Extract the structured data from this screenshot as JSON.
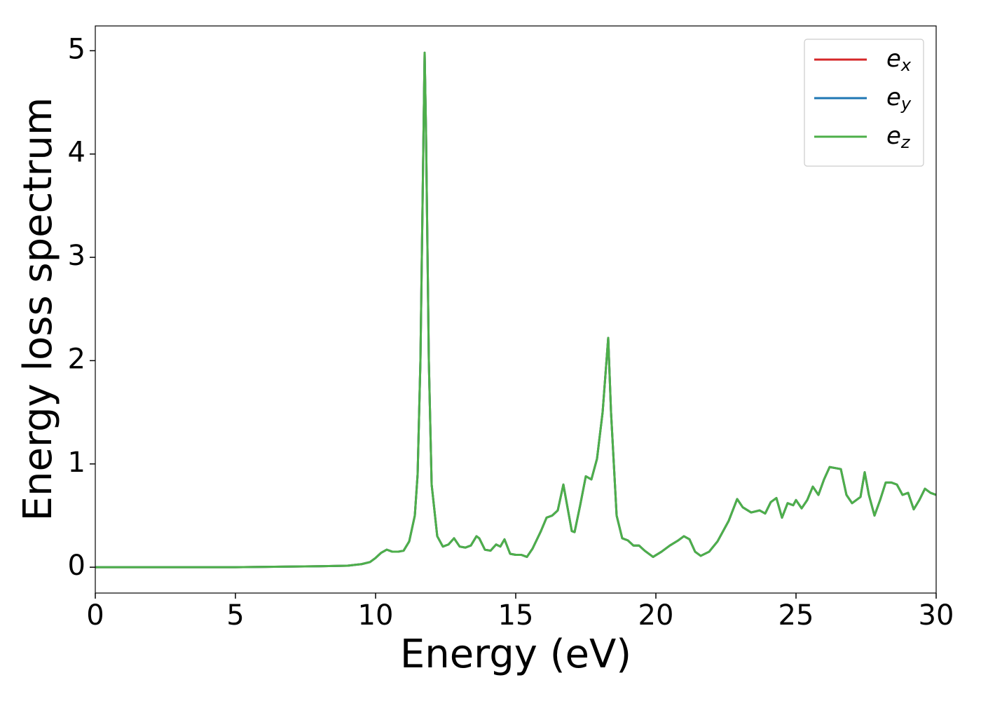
{
  "chart_data": {
    "type": "line",
    "xlabel": "Energy (eV)",
    "ylabel": "Energy loss spectrum",
    "x": [
      0,
      5,
      8,
      9,
      9.5,
      9.8,
      10.0,
      10.2,
      10.4,
      10.6,
      10.8,
      11.0,
      11.2,
      11.4,
      11.5,
      11.6,
      11.7,
      11.75,
      11.8,
      11.9,
      12.0,
      12.2,
      12.4,
      12.6,
      12.8,
      13.0,
      13.2,
      13.4,
      13.6,
      13.7,
      13.9,
      14.1,
      14.3,
      14.45,
      14.6,
      14.8,
      15.0,
      15.2,
      15.4,
      15.6,
      15.9,
      16.1,
      16.3,
      16.5,
      16.7,
      16.8,
      17.0,
      17.1,
      17.3,
      17.5,
      17.7,
      17.9,
      18.1,
      18.3,
      18.4,
      18.6,
      18.8,
      19.0,
      19.2,
      19.4,
      19.6,
      19.9,
      20.2,
      20.5,
      20.8,
      21.0,
      21.2,
      21.4,
      21.6,
      21.9,
      22.2,
      22.6,
      22.9,
      23.1,
      23.4,
      23.7,
      23.9,
      24.1,
      24.3,
      24.5,
      24.7,
      24.9,
      25.0,
      25.2,
      25.4,
      25.6,
      25.8,
      26.0,
      26.2,
      26.4,
      26.6,
      26.8,
      27.0,
      27.3,
      27.45,
      27.6,
      27.8,
      28.0,
      28.2,
      28.4,
      28.6,
      28.8,
      29.0,
      29.2,
      29.4,
      29.6,
      29.8,
      30.0
    ],
    "series": [
      {
        "name": "e",
        "subscript": "x",
        "color": "#d62728",
        "values": [
          0,
          0,
          0.01,
          0.015,
          0.03,
          0.05,
          0.09,
          0.14,
          0.17,
          0.15,
          0.15,
          0.16,
          0.25,
          0.5,
          0.9,
          2.0,
          4.0,
          4.98,
          4.2,
          2.0,
          0.8,
          0.3,
          0.2,
          0.22,
          0.28,
          0.2,
          0.19,
          0.21,
          0.3,
          0.28,
          0.17,
          0.16,
          0.22,
          0.2,
          0.27,
          0.13,
          0.12,
          0.12,
          0.1,
          0.18,
          0.35,
          0.48,
          0.5,
          0.55,
          0.8,
          0.65,
          0.35,
          0.34,
          0.6,
          0.88,
          0.85,
          1.05,
          1.5,
          2.22,
          1.5,
          0.5,
          0.28,
          0.26,
          0.21,
          0.21,
          0.16,
          0.1,
          0.15,
          0.21,
          0.26,
          0.3,
          0.27,
          0.15,
          0.11,
          0.15,
          0.25,
          0.45,
          0.66,
          0.58,
          0.53,
          0.55,
          0.52,
          0.63,
          0.67,
          0.48,
          0.62,
          0.6,
          0.65,
          0.57,
          0.65,
          0.78,
          0.7,
          0.85,
          0.97,
          0.96,
          0.95,
          0.7,
          0.62,
          0.68,
          0.92,
          0.7,
          0.5,
          0.65,
          0.82,
          0.82,
          0.8,
          0.7,
          0.72,
          0.56,
          0.65,
          0.76,
          0.72,
          0.7
        ]
      },
      {
        "name": "e",
        "subscript": "y",
        "color": "#1f77b4",
        "values": [
          0,
          0,
          0.01,
          0.015,
          0.03,
          0.05,
          0.09,
          0.14,
          0.17,
          0.15,
          0.15,
          0.16,
          0.25,
          0.5,
          0.9,
          2.0,
          4.0,
          4.98,
          4.2,
          2.0,
          0.8,
          0.3,
          0.2,
          0.22,
          0.28,
          0.2,
          0.19,
          0.21,
          0.3,
          0.28,
          0.17,
          0.16,
          0.22,
          0.2,
          0.27,
          0.13,
          0.12,
          0.12,
          0.1,
          0.18,
          0.35,
          0.48,
          0.5,
          0.55,
          0.8,
          0.65,
          0.35,
          0.34,
          0.6,
          0.88,
          0.85,
          1.05,
          1.5,
          2.22,
          1.5,
          0.5,
          0.28,
          0.26,
          0.21,
          0.21,
          0.16,
          0.1,
          0.15,
          0.21,
          0.26,
          0.3,
          0.27,
          0.15,
          0.11,
          0.15,
          0.25,
          0.45,
          0.66,
          0.58,
          0.53,
          0.55,
          0.52,
          0.63,
          0.67,
          0.48,
          0.62,
          0.6,
          0.65,
          0.57,
          0.65,
          0.78,
          0.7,
          0.85,
          0.97,
          0.96,
          0.95,
          0.7,
          0.62,
          0.68,
          0.92,
          0.7,
          0.5,
          0.65,
          0.82,
          0.82,
          0.8,
          0.7,
          0.72,
          0.56,
          0.65,
          0.76,
          0.72,
          0.7
        ]
      },
      {
        "name": "e",
        "subscript": "z",
        "color": "#4daf4a",
        "values": [
          0,
          0,
          0.01,
          0.015,
          0.03,
          0.05,
          0.09,
          0.14,
          0.17,
          0.15,
          0.15,
          0.16,
          0.25,
          0.5,
          0.9,
          2.0,
          4.0,
          4.98,
          4.2,
          2.0,
          0.8,
          0.3,
          0.2,
          0.22,
          0.28,
          0.2,
          0.19,
          0.21,
          0.3,
          0.28,
          0.17,
          0.16,
          0.22,
          0.2,
          0.27,
          0.13,
          0.12,
          0.12,
          0.1,
          0.18,
          0.35,
          0.48,
          0.5,
          0.55,
          0.8,
          0.65,
          0.35,
          0.34,
          0.6,
          0.88,
          0.85,
          1.05,
          1.5,
          2.22,
          1.5,
          0.5,
          0.28,
          0.26,
          0.21,
          0.21,
          0.16,
          0.1,
          0.15,
          0.21,
          0.26,
          0.3,
          0.27,
          0.15,
          0.11,
          0.15,
          0.25,
          0.45,
          0.66,
          0.58,
          0.53,
          0.55,
          0.52,
          0.63,
          0.67,
          0.48,
          0.62,
          0.6,
          0.65,
          0.57,
          0.65,
          0.78,
          0.7,
          0.85,
          0.97,
          0.96,
          0.95,
          0.7,
          0.62,
          0.68,
          0.92,
          0.7,
          0.5,
          0.65,
          0.82,
          0.82,
          0.8,
          0.7,
          0.72,
          0.56,
          0.65,
          0.76,
          0.72,
          0.7
        ]
      }
    ],
    "xlim": [
      0,
      30
    ],
    "xticks": [
      0,
      5,
      10,
      15,
      20,
      25,
      30
    ],
    "ylim": [
      -0.25,
      5.24
    ],
    "yticks": [
      0,
      1,
      2,
      3,
      4,
      5
    ],
    "grid": false,
    "legend": "upper right"
  }
}
